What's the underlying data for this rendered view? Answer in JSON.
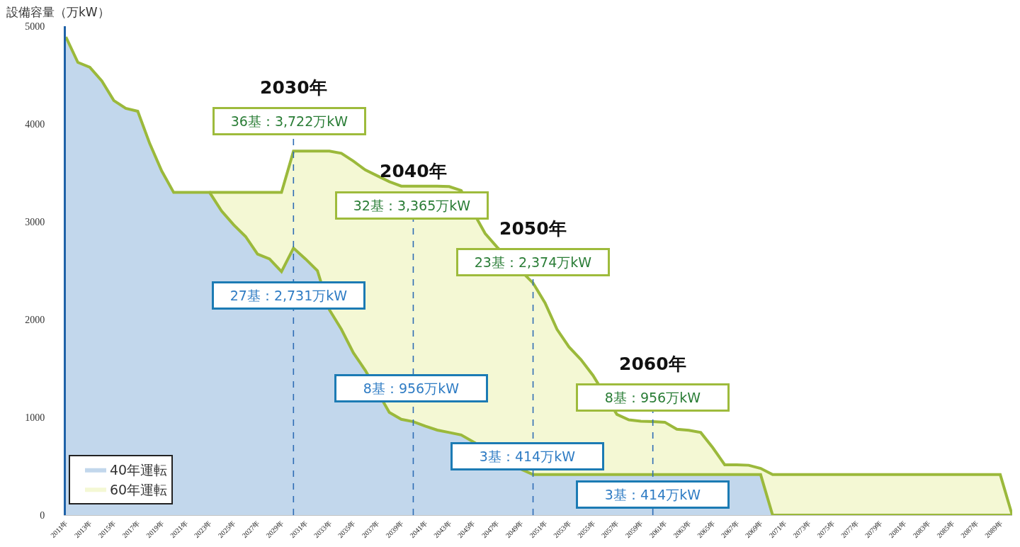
{
  "chart_data": {
    "type": "area",
    "ylabel": "設備容量（万kW）",
    "x": [
      2011,
      2012,
      2013,
      2014,
      2015,
      2016,
      2017,
      2018,
      2019,
      2020,
      2021,
      2022,
      2023,
      2024,
      2025,
      2026,
      2027,
      2028,
      2029,
      2030,
      2031,
      2032,
      2033,
      2034,
      2035,
      2036,
      2037,
      2038,
      2039,
      2040,
      2041,
      2042,
      2043,
      2044,
      2045,
      2046,
      2047,
      2048,
      2049,
      2050,
      2051,
      2052,
      2053,
      2054,
      2055,
      2056,
      2057,
      2058,
      2059,
      2060,
      2061,
      2062,
      2063,
      2064,
      2065,
      2066,
      2067,
      2068,
      2069,
      2070,
      2071,
      2072,
      2073,
      2074,
      2075,
      2076,
      2077,
      2078,
      2079,
      2080,
      2081,
      2082,
      2083,
      2084,
      2085,
      2086,
      2087,
      2088,
      2089,
      2090
    ],
    "xlim": [
      2011,
      2090
    ],
    "xticks": [
      {
        "value": 2011,
        "label": "2011年"
      },
      {
        "value": 2013,
        "label": "2013年"
      },
      {
        "value": 2015,
        "label": "2015年"
      },
      {
        "value": 2017,
        "label": "2017年"
      },
      {
        "value": 2019,
        "label": "2019年"
      },
      {
        "value": 2021,
        "label": "2021年"
      },
      {
        "value": 2023,
        "label": "2023年"
      },
      {
        "value": 2025,
        "label": "2025年"
      },
      {
        "value": 2027,
        "label": "2027年"
      },
      {
        "value": 2029,
        "label": "2029年"
      },
      {
        "value": 2031,
        "label": "2031年"
      },
      {
        "value": 2033,
        "label": "2033年"
      },
      {
        "value": 2035,
        "label": "2035年"
      },
      {
        "value": 2037,
        "label": "2037年"
      },
      {
        "value": 2039,
        "label": "2039年"
      },
      {
        "value": 2041,
        "label": "2041年"
      },
      {
        "value": 2043,
        "label": "2043年"
      },
      {
        "value": 2045,
        "label": "2045年"
      },
      {
        "value": 2047,
        "label": "2047年"
      },
      {
        "value": 2049,
        "label": "2049年"
      },
      {
        "value": 2051,
        "label": "2051年"
      },
      {
        "value": 2053,
        "label": "2053年"
      },
      {
        "value": 2055,
        "label": "2055年"
      },
      {
        "value": 2057,
        "label": "2057年"
      },
      {
        "value": 2059,
        "label": "2059年"
      },
      {
        "value": 2061,
        "label": "2061年"
      },
      {
        "value": 2063,
        "label": "2063年"
      },
      {
        "value": 2065,
        "label": "2065年"
      },
      {
        "value": 2067,
        "label": "2067年"
      },
      {
        "value": 2069,
        "label": "2069年"
      },
      {
        "value": 2071,
        "label": "2071年"
      },
      {
        "value": 2073,
        "label": "2073年"
      },
      {
        "value": 2075,
        "label": "2075年"
      },
      {
        "value": 2077,
        "label": "2077年"
      },
      {
        "value": 2079,
        "label": "2079年"
      },
      {
        "value": 2081,
        "label": "2081年"
      },
      {
        "value": 2083,
        "label": "2083年"
      },
      {
        "value": 2085,
        "label": "2085年"
      },
      {
        "value": 2087,
        "label": "2087年"
      },
      {
        "value": 2089,
        "label": "2089年"
      }
    ],
    "ylim": [
      0,
      5000
    ],
    "yticks": [
      0,
      1000,
      2000,
      3000,
      4000,
      5000
    ],
    "series": [
      {
        "name": "40年運転",
        "color": "#c2d7ec",
        "values": [
          4890,
          4630,
          4580,
          4440,
          4240,
          4160,
          4130,
          3800,
          3520,
          3300,
          3300,
          3300,
          3300,
          3110,
          2970,
          2850,
          2670,
          2620,
          2490,
          2731,
          2620,
          2500,
          2100,
          1900,
          1660,
          1480,
          null,
          1050,
          980,
          956,
          910,
          870,
          845,
          820,
          null,
          null,
          null,
          null,
          470,
          414,
          414,
          414,
          414,
          414,
          414,
          414,
          414,
          414,
          414,
          414,
          414,
          414,
          414,
          414,
          414,
          414,
          414,
          414,
          414,
          0,
          0,
          0,
          0,
          0,
          0,
          0,
          0,
          0,
          0,
          0,
          0,
          0,
          0,
          0,
          0,
          0,
          0,
          0,
          0,
          0
        ]
      },
      {
        "name": "60年運転",
        "color": "#f4f8d4",
        "values": [
          null,
          null,
          null,
          null,
          null,
          null,
          null,
          null,
          null,
          null,
          null,
          null,
          3300,
          3300,
          3300,
          3300,
          3300,
          3300,
          3300,
          3722,
          3722,
          3722,
          3722,
          3700,
          3620,
          3530,
          3470,
          3410,
          3365,
          3365,
          3365,
          3365,
          3360,
          3320,
          null,
          2880,
          2740,
          null,
          null,
          2374,
          2170,
          1900,
          1720,
          1590,
          1430,
          null,
          1030,
          975,
          960,
          956,
          950,
          878,
          868,
          845,
          690,
          515,
          515,
          510,
          478,
          414,
          414,
          414,
          414,
          414,
          414,
          414,
          414,
          414,
          414,
          414,
          414,
          414,
          414,
          414,
          414,
          414,
          414,
          414,
          414,
          0
        ]
      }
    ],
    "ref_lines": [
      {
        "axis": "x",
        "value": 2030,
        "label": "2030年",
        "color": "#2f6db5",
        "line_style": "dashed"
      },
      {
        "axis": "x",
        "value": 2040,
        "label": "2040年",
        "color": "#2f6db5",
        "line_style": "dashed"
      },
      {
        "axis": "x",
        "value": 2050,
        "label": "2050年",
        "color": "#2f6db5",
        "line_style": "dashed"
      },
      {
        "axis": "x",
        "value": 2060,
        "label": "2060年",
        "color": "#2f6db5",
        "line_style": "dashed"
      }
    ],
    "annotations": [
      {
        "text": "36基：3,722万kW",
        "x": 2030,
        "y": 3722
      },
      {
        "text": "27基：2,731万kW",
        "x": 2030,
        "y": 2731
      },
      {
        "text": "32基：3,365万kW",
        "x": 2040,
        "y": 3365
      },
      {
        "text": "8基：956万kW",
        "x": 2040,
        "y": 956
      },
      {
        "text": "23基：2,374万kW",
        "x": 2050,
        "y": 2374
      },
      {
        "text": "3基：414万kW",
        "x": 2050,
        "y": 414
      },
      {
        "text": "8基：956万kW",
        "x": 2060,
        "y": 956
      },
      {
        "text": "3基：414万kW",
        "x": 2060,
        "y": 414
      }
    ],
    "legend": "bottom left"
  }
}
